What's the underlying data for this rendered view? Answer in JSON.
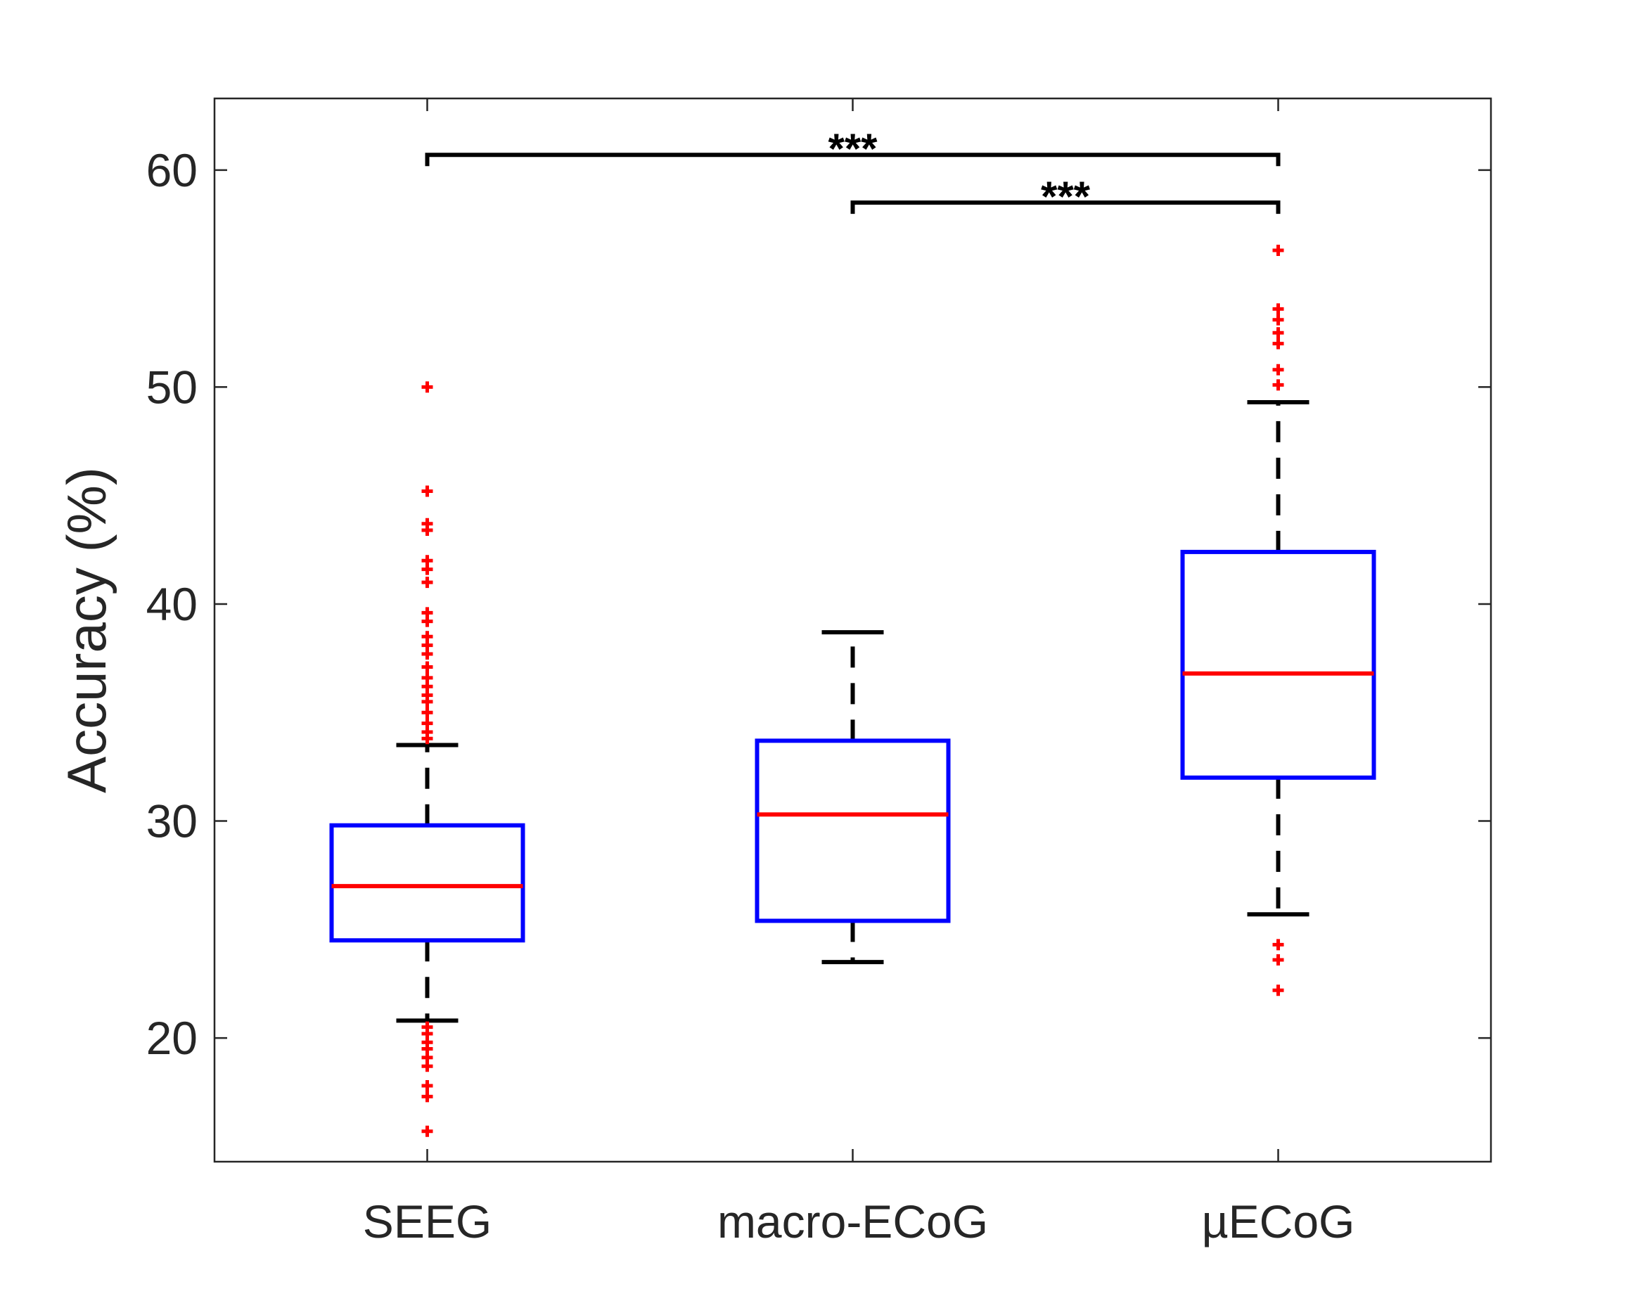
{
  "chart_data": {
    "type": "box",
    "title": "",
    "xlabel": "",
    "ylabel": "Accuracy (%)",
    "ylim": [
      14.3,
      63.3
    ],
    "yticks": [
      20,
      30,
      40,
      50,
      60
    ],
    "categories": [
      "SEEG",
      "macro-ECoG",
      "µECoG"
    ],
    "grid": false,
    "boxes": [
      {
        "category": "SEEG",
        "q1": 24.5,
        "median": 27.0,
        "q3": 29.8,
        "whisker_low": 20.8,
        "whisker_high": 33.5,
        "outliers": [
          50.0,
          45.2,
          43.7,
          43.4,
          42.0,
          41.6,
          41.0,
          39.6,
          39.2,
          38.5,
          38.1,
          37.7,
          37.1,
          36.6,
          36.2,
          35.8,
          35.5,
          35.0,
          34.5,
          34.1,
          33.8,
          20.5,
          20.2,
          19.8,
          19.5,
          19.1,
          18.7,
          17.8,
          17.3,
          15.7
        ]
      },
      {
        "category": "macro-ECoG",
        "q1": 25.4,
        "median": 30.3,
        "q3": 33.7,
        "whisker_low": 23.5,
        "whisker_high": 38.7,
        "outliers": []
      },
      {
        "category": "µECoG",
        "q1": 32.0,
        "median": 36.8,
        "q3": 42.4,
        "whisker_low": 25.7,
        "whisker_high": 49.3,
        "outliers": [
          56.3,
          53.6,
          53.1,
          52.5,
          52.0,
          50.8,
          50.1,
          24.3,
          23.6,
          22.2
        ]
      }
    ],
    "significance": [
      {
        "from": "SEEG",
        "to": "µECoG",
        "label": "***",
        "y": 60.7
      },
      {
        "from": "macro-ECoG",
        "to": "µECoG",
        "label": "***",
        "y": 58.5
      }
    ],
    "colors": {
      "box": "#0000ff",
      "median": "#ff0000",
      "whisker": "#000000",
      "outlier": "#ff0000",
      "axis": "#262626"
    }
  }
}
